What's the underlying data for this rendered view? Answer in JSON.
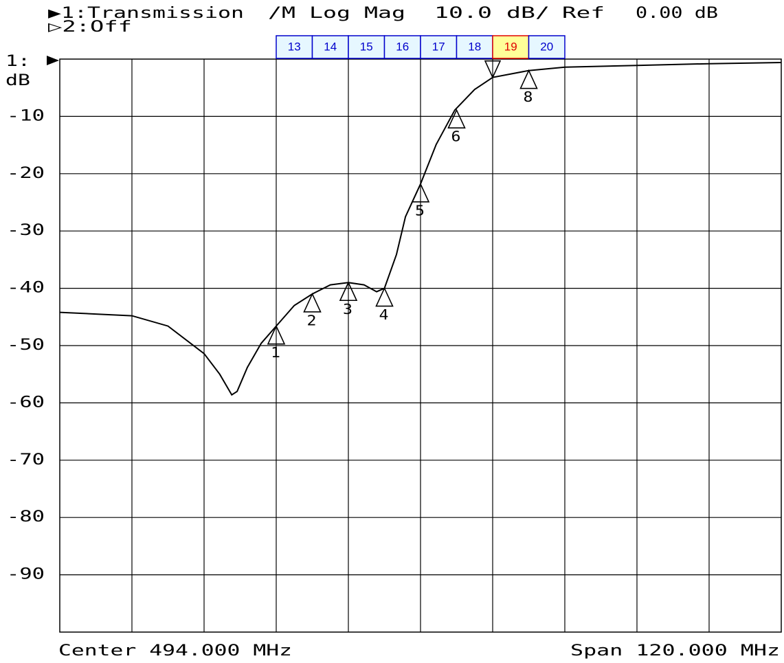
{
  "chart_data": {
    "type": "line",
    "title_parts": [
      "▶1:Transmission",
      "/M Log Mag",
      "10.0 dB/",
      "Ref",
      "0.00 dB"
    ],
    "subtitle": "▷2:Off",
    "channel": "1:",
    "ylabel": "dB",
    "center_label": "Center 494.000 MHz",
    "span_label": "Span 120.000 MHz",
    "tabs": [
      "13",
      "14",
      "15",
      "16",
      "17",
      "18",
      "19",
      "20"
    ],
    "selected_tab": 6,
    "xlim": [
      434,
      554
    ],
    "ylim": [
      -100,
      0
    ],
    "yticks": [
      -10,
      -20,
      -30,
      -40,
      -50,
      -60,
      -70,
      -80,
      -90
    ],
    "grid": true,
    "series": [
      {
        "name": "Transmission",
        "color": "#000000",
        "x": [
          434,
          440,
          446,
          452,
          458,
          460.6,
          462.6,
          463.5,
          465.2,
          467.5,
          470,
          473,
          476,
          479,
          482,
          484.6,
          486.7,
          488,
          490,
          491.5,
          494,
          496.6,
          499.7,
          503,
          506,
          512,
          518,
          530,
          542,
          554
        ],
        "values": [
          -44.2,
          -44.5,
          -44.8,
          -46.6,
          -51.4,
          -55.0,
          -58.6,
          -58.0,
          -53.8,
          -49.6,
          -46.6,
          -43.0,
          -41.0,
          -39.4,
          -39.0,
          -39.4,
          -40.6,
          -40.0,
          -34.1,
          -27.5,
          -21.8,
          -14.9,
          -8.9,
          -5.3,
          -3.2,
          -2.0,
          -1.4,
          -1.1,
          -0.8,
          -0.6
        ]
      }
    ],
    "markers": [
      {
        "label": "1",
        "x": 470,
        "value": -46.6
      },
      {
        "label": "2",
        "x": 476,
        "value": -41.0
      },
      {
        "label": "3",
        "x": 482,
        "value": -39.0
      },
      {
        "label": "4",
        "x": 488,
        "value": -40.0
      },
      {
        "label": "5",
        "x": 494,
        "value": -21.8
      },
      {
        "label": "6",
        "x": 500,
        "value": -8.9
      },
      {
        "x": 506,
        "value": -3.2,
        "direction": "down"
      },
      {
        "label": "8",
        "x": 512,
        "value": -2.0
      }
    ]
  }
}
